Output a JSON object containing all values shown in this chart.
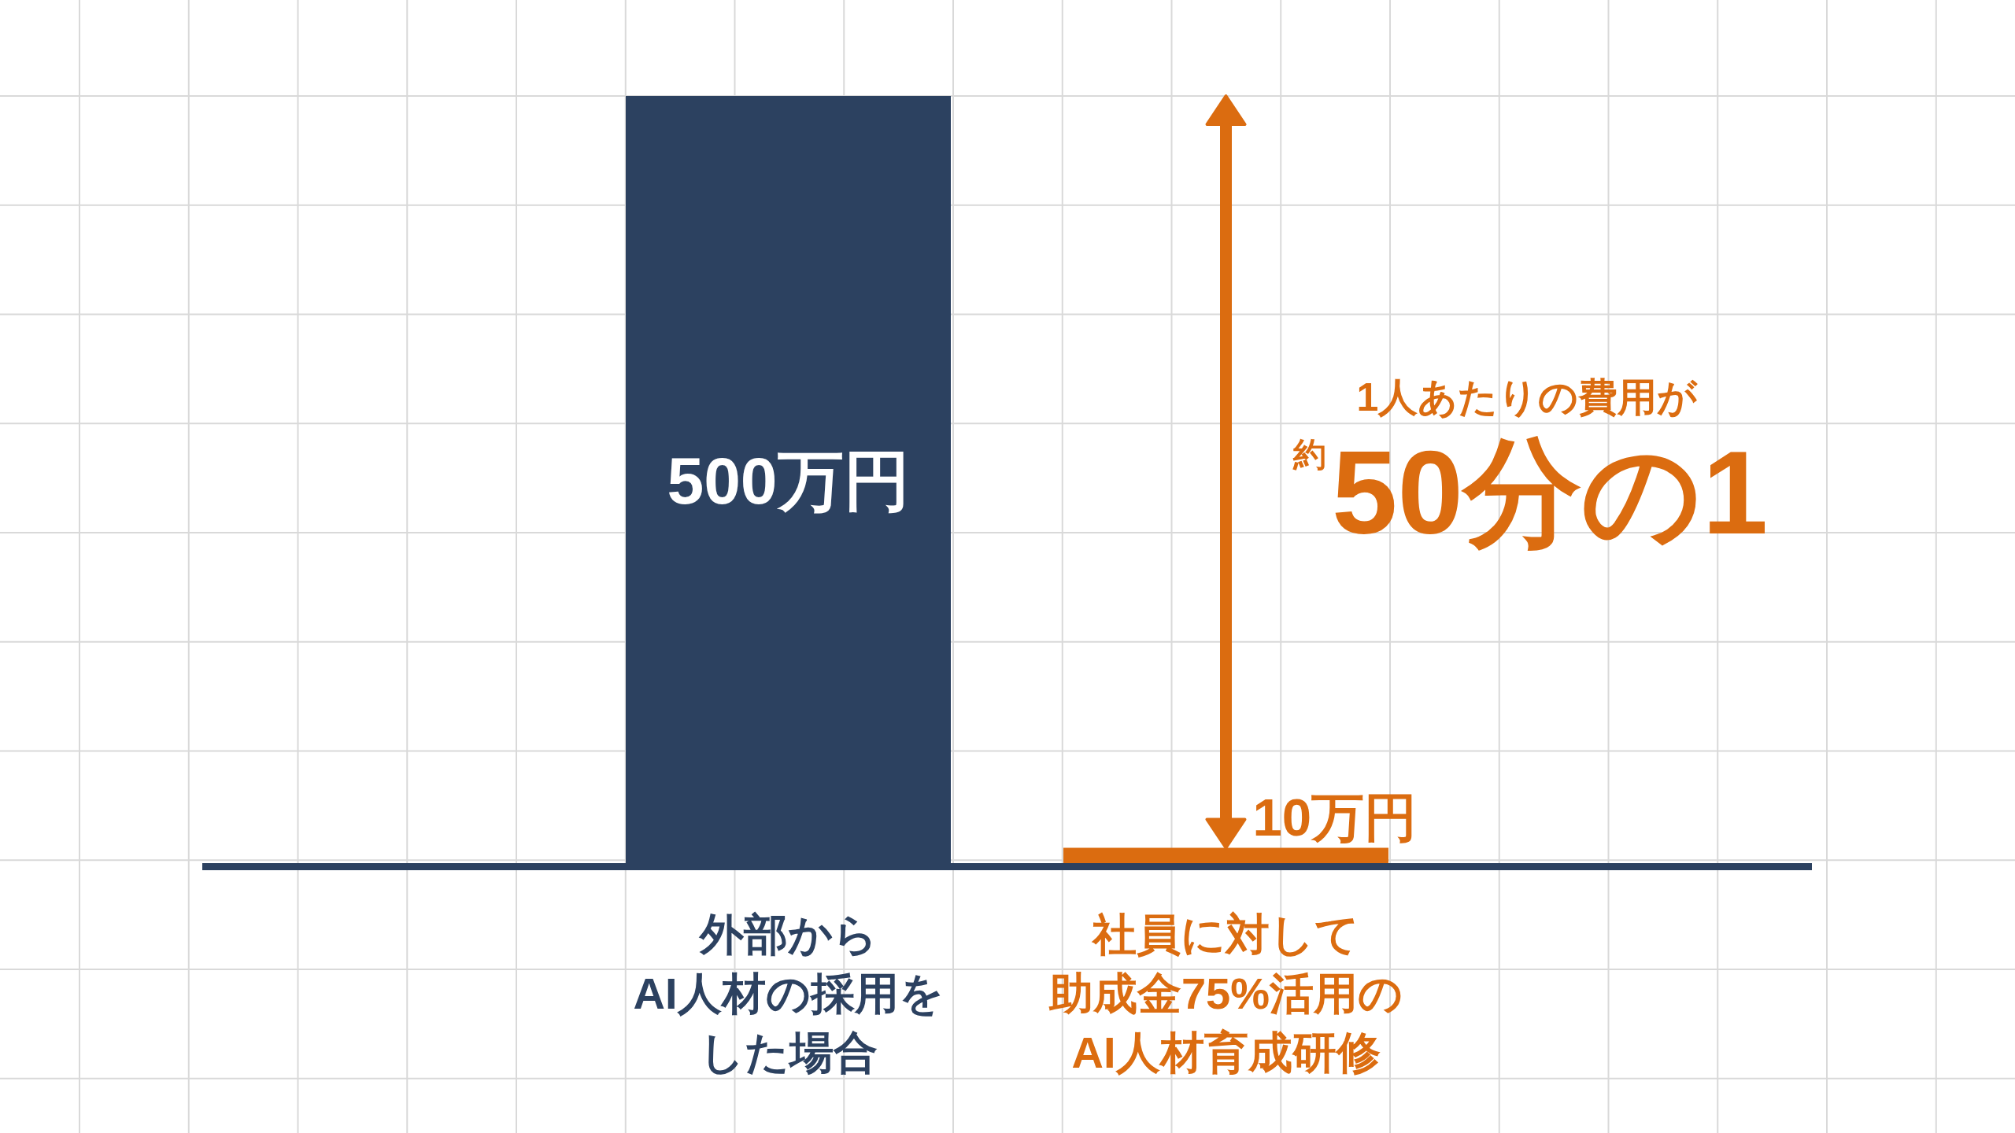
{
  "chart_data": {
    "type": "bar",
    "categories": [
      "外部からAI人材の採用をした場合",
      "社員に対して助成金75%活用のAI人材育成研修"
    ],
    "values": [
      500,
      10
    ],
    "colors": [
      "#2c4160",
      "#db6c10"
    ],
    "value_labels": [
      "500万円",
      "10万円"
    ],
    "annotations": [
      "1人あたりの費用が",
      "約",
      "50分の1"
    ],
    "grid": true
  }
}
